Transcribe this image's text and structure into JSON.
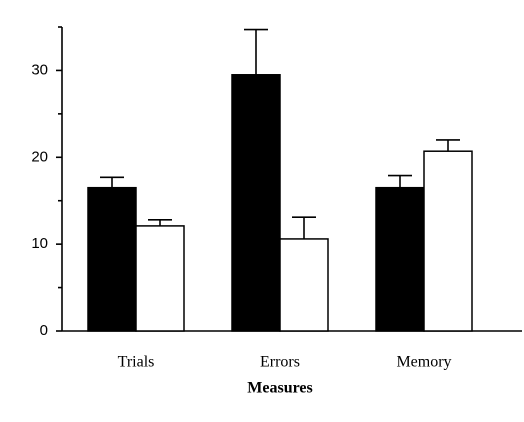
{
  "chart_data": {
    "type": "bar",
    "xlabel": "Measures",
    "categories": [
      "Trials",
      "Errors",
      "Memory"
    ],
    "series": [
      {
        "color": "#000000",
        "values": [
          16.5,
          29.5,
          16.5
        ],
        "errors": [
          1.2,
          5.2,
          1.4
        ]
      },
      {
        "color": "#ffffff",
        "values": [
          12.1,
          10.6,
          20.7
        ],
        "errors": [
          0.7,
          2.5,
          1.3
        ]
      }
    ],
    "ylim": [
      0,
      35
    ],
    "yticks": [
      0,
      10,
      20,
      30
    ],
    "minor_yticks": [
      5,
      15,
      25,
      35
    ],
    "grid": false
  }
}
